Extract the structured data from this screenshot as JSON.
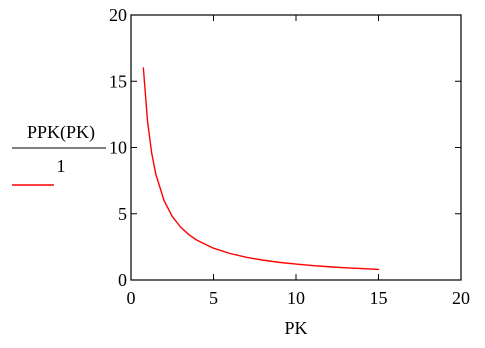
{
  "chart_data": {
    "type": "line",
    "xlabel": "PK",
    "ylabel": {
      "numerator": "PPK(PK)",
      "denominator": "1"
    },
    "xlim": [
      0,
      20
    ],
    "ylim": [
      0,
      20
    ],
    "x_ticks": [
      "0",
      "5",
      "10",
      "15",
      "20"
    ],
    "y_ticks": [
      "0",
      "5",
      "10",
      "15",
      "20"
    ],
    "grid": false,
    "series": [
      {
        "color": "#ff0000",
        "x": [
          0.75,
          1,
          1.25,
          1.5,
          2,
          2.5,
          3,
          3.5,
          4,
          5,
          6,
          7,
          8,
          9,
          10,
          11,
          12,
          13,
          14,
          15
        ],
        "y": [
          16,
          12,
          9.6,
          8,
          6,
          4.8,
          4,
          3.43,
          3,
          2.4,
          2,
          1.71,
          1.5,
          1.33,
          1.2,
          1.09,
          1,
          0.92,
          0.86,
          0.8
        ]
      }
    ]
  }
}
